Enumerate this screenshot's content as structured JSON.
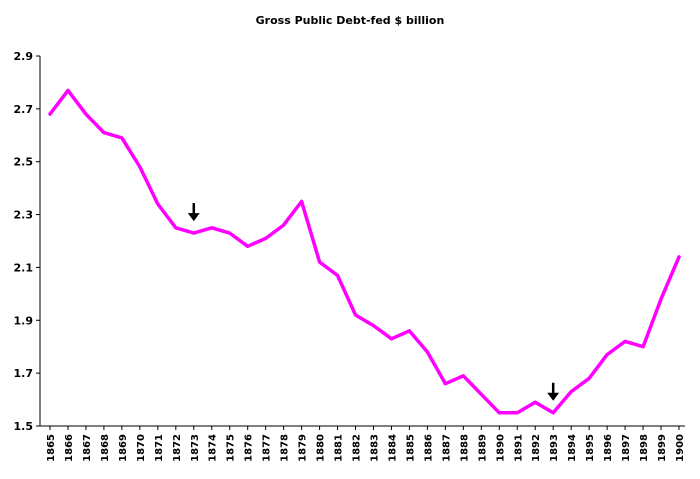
{
  "chart_data": {
    "type": "line",
    "title": "Gross Public Debt-fed $ billion",
    "xlabel": "",
    "ylabel": "",
    "ylim": [
      1.5,
      2.9
    ],
    "y_ticks": [
      "1.5",
      "1.7",
      "1.9",
      "2.1",
      "2.3",
      "2.5",
      "2.7",
      "2.9"
    ],
    "categories": [
      "1865",
      "1866",
      "1867",
      "1868",
      "1869",
      "1870",
      "1871",
      "1872",
      "1873",
      "1874",
      "1875",
      "1876",
      "1877",
      "1878",
      "1879",
      "1880",
      "1881",
      "1882",
      "1883",
      "1884",
      "1885",
      "1886",
      "1887",
      "1888",
      "1889",
      "1890",
      "1891",
      "1892",
      "1893",
      "1894",
      "1895",
      "1896",
      "1897",
      "1898",
      "1899",
      "1900"
    ],
    "values": [
      2.68,
      2.77,
      2.68,
      2.61,
      2.59,
      2.48,
      2.34,
      2.25,
      2.23,
      2.25,
      2.23,
      2.18,
      2.21,
      2.26,
      2.35,
      2.12,
      2.07,
      1.92,
      1.88,
      1.83,
      1.86,
      1.78,
      1.66,
      1.69,
      1.62,
      1.55,
      1.55,
      1.59,
      1.55,
      1.63,
      1.68,
      1.77,
      1.82,
      1.8,
      1.98,
      2.14
    ],
    "line_color": "#FF00FF",
    "grid": false,
    "annotations": [
      {
        "type": "arrow-down",
        "x": "1873"
      },
      {
        "type": "arrow-down",
        "x": "1893"
      }
    ]
  }
}
